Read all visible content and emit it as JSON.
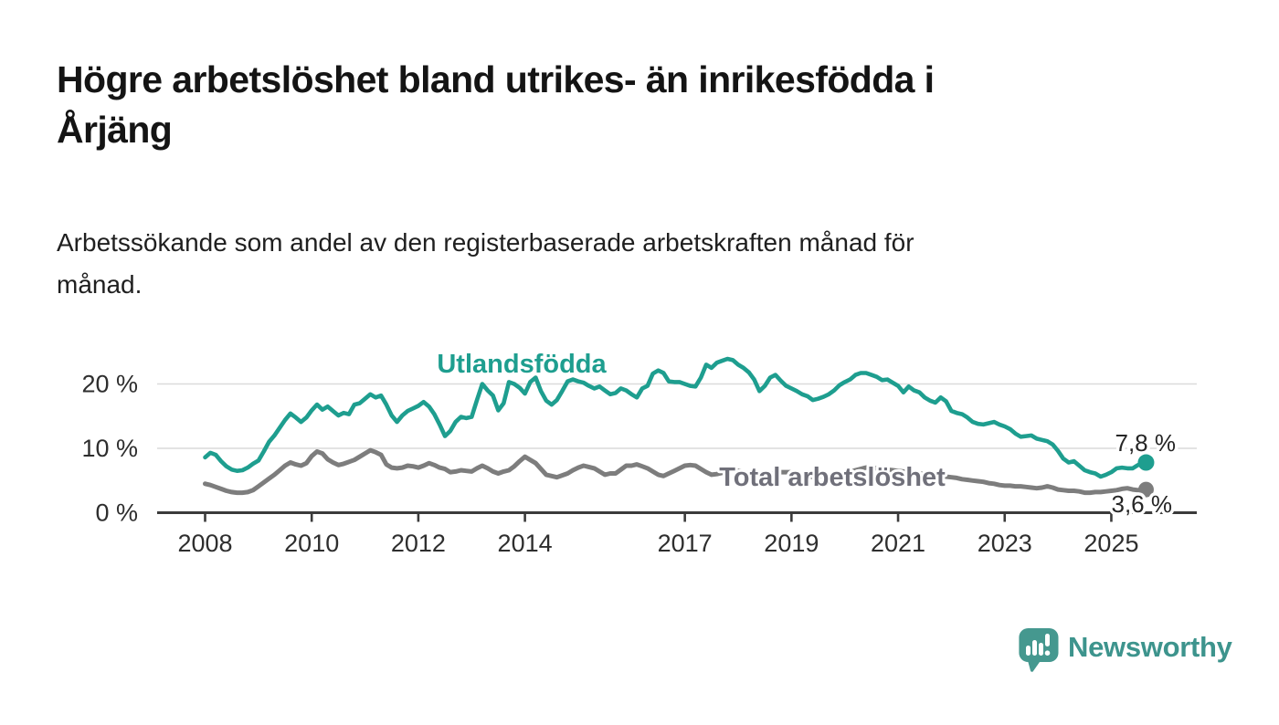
{
  "header": {
    "title_line1": "Högre arbetslöshet bland utrikes- än inrikesfödda i",
    "title_line2": "Årjäng",
    "subtitle_line1": "Arbetssökande som andel av den registerbaserade arbetskraften månad för",
    "subtitle_line2": "månad."
  },
  "branding": {
    "logo_icon": "newsworthy-speech-bubble-bars-icon",
    "logo_text": "Newsworthy",
    "brand_color": "#3d948d"
  },
  "chart_data": {
    "type": "line",
    "title": "",
    "xlabel": "",
    "ylabel": "",
    "x_unit": "year (monthly observations)",
    "x_start": 2008.0,
    "x_step": 0.1,
    "x_end": 2025.6,
    "ylim": [
      0,
      25
    ],
    "grid": "horizontal",
    "legend_position": "inline-labels",
    "y_ticks": [
      {
        "value": 0,
        "label": "0 %"
      },
      {
        "value": 10,
        "label": "10 %"
      },
      {
        "value": 20,
        "label": "20 %"
      }
    ],
    "x_ticks": [
      {
        "year": 2008,
        "label": "2008"
      },
      {
        "year": 2010,
        "label": "2010"
      },
      {
        "year": 2012,
        "label": "2012"
      },
      {
        "year": 2014,
        "label": "2014"
      },
      {
        "year": 2017,
        "label": "2017"
      },
      {
        "year": 2019,
        "label": "2019"
      },
      {
        "year": 2021,
        "label": "2021"
      },
      {
        "year": 2023,
        "label": "2023"
      },
      {
        "year": 2025,
        "label": "2025"
      }
    ],
    "series": [
      {
        "name": "Utlandsfödda",
        "color": "#1e9e8f",
        "end_label": "7,8 %",
        "end_value": 7.8,
        "values": [
          8.6,
          9.3,
          9.0,
          8.0,
          7.2,
          6.7,
          6.5,
          6.6,
          7.0,
          7.6,
          8.1,
          9.5,
          11.0,
          12.0,
          13.2,
          14.4,
          15.4,
          14.8,
          14.1,
          14.8,
          15.9,
          16.8,
          16.0,
          16.5,
          15.8,
          15.1,
          15.5,
          15.3,
          16.8,
          17.0,
          17.7,
          18.4,
          17.9,
          18.2,
          16.8,
          15.1,
          14.1,
          15.1,
          15.8,
          16.2,
          16.6,
          17.2,
          16.5,
          15.3,
          13.7,
          11.9,
          12.7,
          14.1,
          14.9,
          14.7,
          14.9,
          17.5,
          20.0,
          19.0,
          18.2,
          15.9,
          17.0,
          20.3,
          20.0,
          19.4,
          18.5,
          20.3,
          21.0,
          18.9,
          17.4,
          16.8,
          17.5,
          18.9,
          20.4,
          20.7,
          20.4,
          20.2,
          19.7,
          19.3,
          19.6,
          19.0,
          18.4,
          18.6,
          19.3,
          19.0,
          18.4,
          17.9,
          19.3,
          19.7,
          21.6,
          22.1,
          21.7,
          20.4,
          20.3,
          20.3,
          20.0,
          19.7,
          19.6,
          21.0,
          23.0,
          22.5,
          23.3,
          23.6,
          23.9,
          23.7,
          23.0,
          22.5,
          21.8,
          20.7,
          18.9,
          19.7,
          21.0,
          21.4,
          20.5,
          19.7,
          19.3,
          18.9,
          18.4,
          18.1,
          17.5,
          17.7,
          18.0,
          18.4,
          19.0,
          19.8,
          20.3,
          20.7,
          21.4,
          21.7,
          21.7,
          21.4,
          21.1,
          20.6,
          20.7,
          20.2,
          19.7,
          18.7,
          19.6,
          19.0,
          18.7,
          17.9,
          17.4,
          17.1,
          17.9,
          17.3,
          15.8,
          15.5,
          15.3,
          14.8,
          14.1,
          13.8,
          13.7,
          13.9,
          14.1,
          13.7,
          13.4,
          13.0,
          12.3,
          11.8,
          11.9,
          12.0,
          11.5,
          11.3,
          11.1,
          10.6,
          9.6,
          8.4,
          7.8,
          8.0,
          7.3,
          6.6,
          6.3,
          6.1,
          5.6,
          5.9,
          6.3,
          6.9,
          7.0,
          6.9,
          6.9,
          7.4,
          7.8
        ]
      },
      {
        "name": "Total arbetslöshet",
        "color": "#7d7d7d",
        "label_color": "#70707a",
        "end_label": "3,6 %",
        "end_value": 3.6,
        "values": [
          4.5,
          4.3,
          4.0,
          3.7,
          3.4,
          3.2,
          3.1,
          3.1,
          3.2,
          3.5,
          4.1,
          4.7,
          5.3,
          5.9,
          6.6,
          7.3,
          7.8,
          7.5,
          7.3,
          7.7,
          8.8,
          9.5,
          9.2,
          8.3,
          7.8,
          7.4,
          7.6,
          7.9,
          8.2,
          8.7,
          9.2,
          9.7,
          9.4,
          9.0,
          7.5,
          7.0,
          6.9,
          7.0,
          7.3,
          7.2,
          7.0,
          7.3,
          7.7,
          7.4,
          7.0,
          6.8,
          6.3,
          6.4,
          6.6,
          6.5,
          6.4,
          6.9,
          7.3,
          6.9,
          6.4,
          6.1,
          6.4,
          6.6,
          7.2,
          8.0,
          8.7,
          8.2,
          7.7,
          6.8,
          5.9,
          5.7,
          5.5,
          5.8,
          6.1,
          6.6,
          7.0,
          7.3,
          7.1,
          6.9,
          6.4,
          5.9,
          6.1,
          6.1,
          6.7,
          7.3,
          7.3,
          7.5,
          7.2,
          6.9,
          6.4,
          5.9,
          5.7,
          6.1,
          6.5,
          6.9,
          7.3,
          7.4,
          7.3,
          6.8,
          6.3,
          5.9,
          6.0,
          6.2,
          6.5,
          6.6,
          6.5,
          6.3,
          6.1,
          6.0,
          5.8,
          5.8,
          6.0,
          6.2,
          6.3,
          6.3,
          6.3,
          6.1,
          5.9,
          5.8,
          5.5,
          5.6,
          5.7,
          5.8,
          5.9,
          6.0,
          6.0,
          6.3,
          6.6,
          6.8,
          7.0,
          7.0,
          6.9,
          6.8,
          6.7,
          6.6,
          6.5,
          6.4,
          6.3,
          6.2,
          6.1,
          6.0,
          5.9,
          5.8,
          5.7,
          5.6,
          5.5,
          5.4,
          5.2,
          5.1,
          5.0,
          4.9,
          4.8,
          4.6,
          4.5,
          4.3,
          4.2,
          4.2,
          4.1,
          4.1,
          4.0,
          3.9,
          3.8,
          3.9,
          4.1,
          3.9,
          3.6,
          3.5,
          3.4,
          3.4,
          3.3,
          3.1,
          3.1,
          3.2,
          3.2,
          3.3,
          3.4,
          3.5,
          3.7,
          3.8,
          3.6,
          3.5,
          3.6
        ]
      }
    ]
  }
}
